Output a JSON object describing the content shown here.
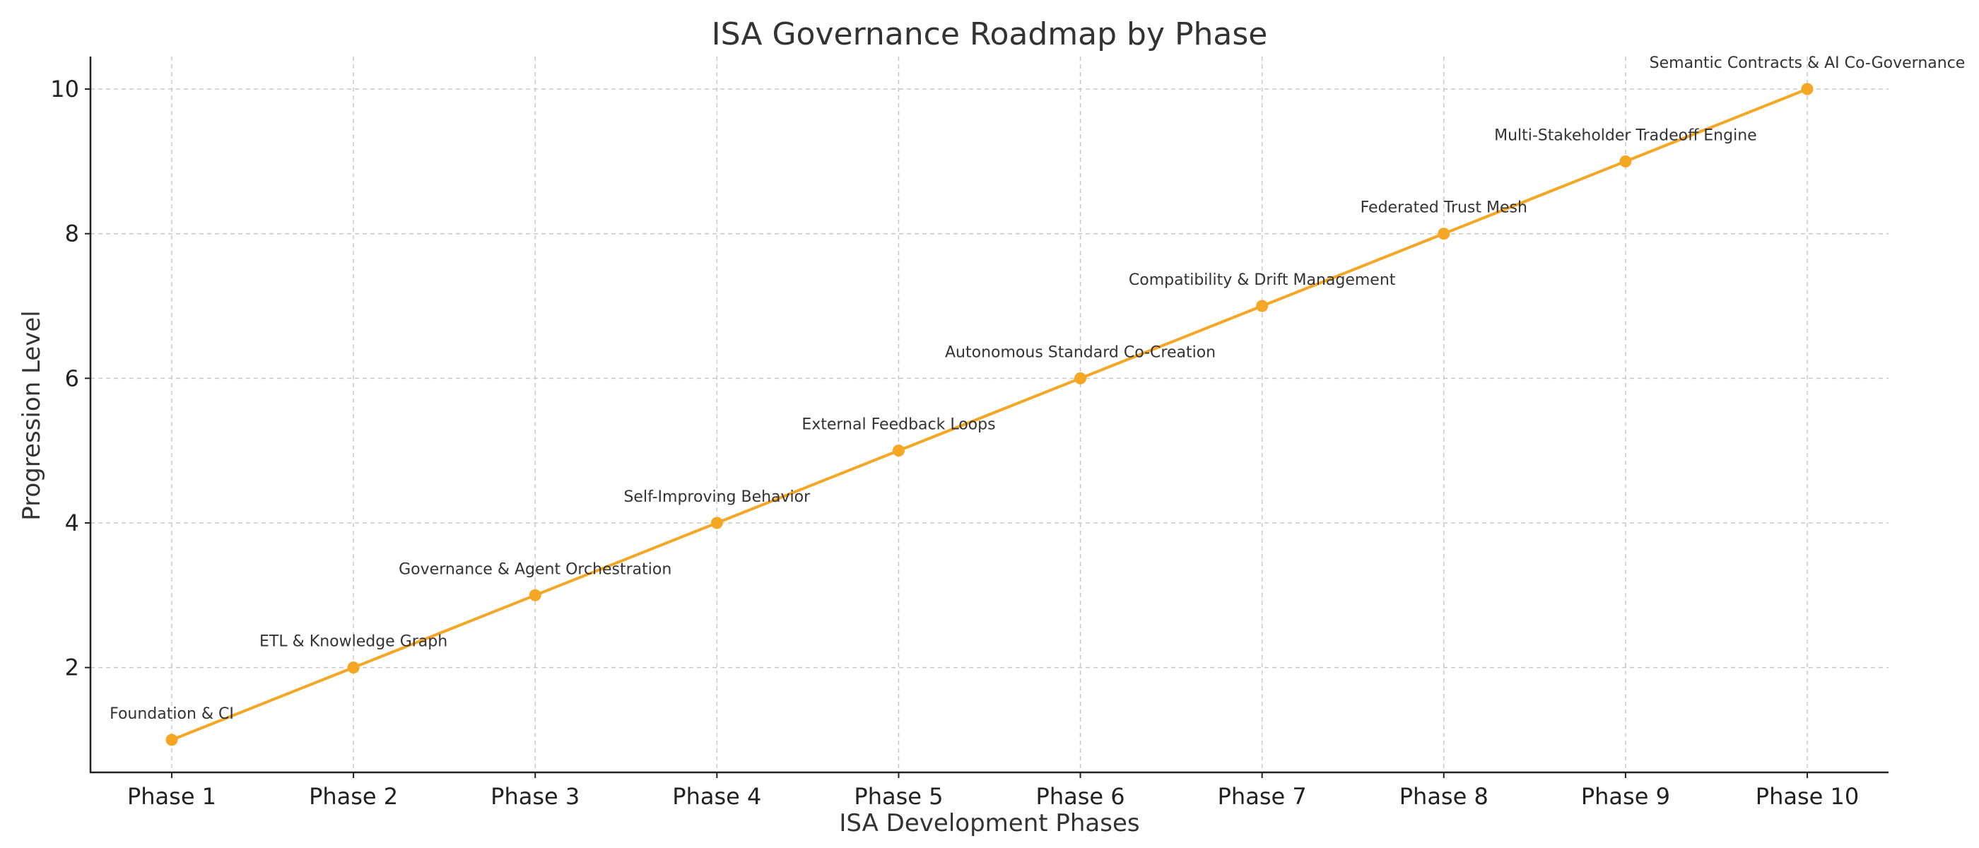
{
  "chart_data": {
    "type": "line",
    "title": "ISA Governance Roadmap by Phase",
    "xlabel": "ISA Development Phases",
    "ylabel": "Progression Level",
    "categories": [
      "Phase 1",
      "Phase 2",
      "Phase 3",
      "Phase 4",
      "Phase 5",
      "Phase 6",
      "Phase 7",
      "Phase 8",
      "Phase 9",
      "Phase 10"
    ],
    "values": [
      1,
      2,
      3,
      4,
      5,
      6,
      7,
      8,
      9,
      10
    ],
    "annotations": [
      "Foundation & CI",
      "ETL & Knowledge Graph",
      "Governance & Agent Orchestration",
      "Self-Improving Behavior",
      "External Feedback Loops",
      "Autonomous Standard Co-Creation",
      "Compatibility & Drift Management",
      "Federated Trust Mesh",
      "Multi-Stakeholder Tradeoff Engine",
      "Semantic Contracts & AI Co-Governance"
    ],
    "ylim": [
      0.55,
      10.45
    ],
    "yticks": [
      2,
      4,
      6,
      8,
      10
    ],
    "grid": true,
    "line_color": "#f5a623"
  }
}
